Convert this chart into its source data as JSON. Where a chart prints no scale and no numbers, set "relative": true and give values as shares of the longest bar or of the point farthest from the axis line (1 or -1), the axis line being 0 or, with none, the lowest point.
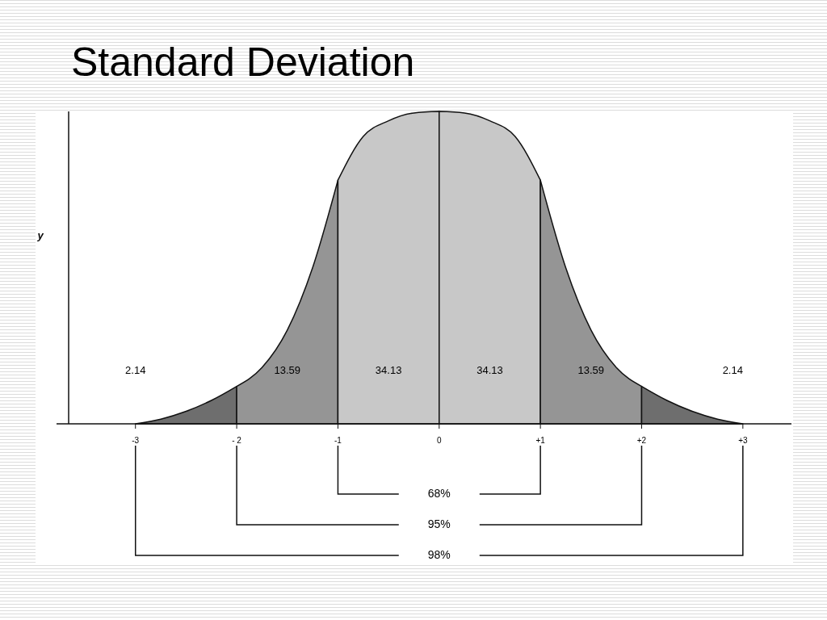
{
  "chart_data": {
    "type": "area",
    "title": "Standard Deviation",
    "ylabel": "y",
    "relative": true,
    "xlim": [
      -3.66,
      3.48
    ],
    "xticks": [
      -3,
      {
        "value": -2,
        "label": "- 2"
      },
      -1,
      0,
      {
        "value": 1,
        "label": "+1"
      },
      {
        "value": 2,
        "label": "+2"
      },
      {
        "value": 3,
        "label": "+3"
      }
    ],
    "series": [
      {
        "color": "#6e6e6e",
        "x": [
          -3,
          -2.75,
          -2.5,
          -2.25,
          -2
        ],
        "values": [
          0,
          0.015,
          0.04,
          0.075,
          0.12
        ]
      },
      {
        "color": "#959595",
        "x": [
          -2,
          -1.75,
          -1.5,
          -1.25,
          -1
        ],
        "values": [
          0.12,
          0.18,
          0.3,
          0.5,
          0.78
        ]
      },
      {
        "color": "#c8c8c8",
        "x": [
          -1,
          -0.75,
          -0.5,
          -0.25,
          0
        ],
        "values": [
          0.78,
          0.92,
          0.97,
          0.995,
          1
        ]
      },
      {
        "color": "#c8c8c8",
        "x": [
          0,
          0.25,
          0.5,
          0.75,
          1
        ],
        "values": [
          1,
          0.995,
          0.97,
          0.92,
          0.78
        ]
      },
      {
        "color": "#959595",
        "x": [
          1,
          1.25,
          1.5,
          1.75,
          2
        ],
        "values": [
          0.78,
          0.5,
          0.3,
          0.18,
          0.12
        ]
      },
      {
        "color": "#6e6e6e",
        "x": [
          2,
          2.25,
          2.5,
          2.75,
          3
        ],
        "values": [
          0.12,
          0.075,
          0.04,
          0.015,
          0
        ]
      }
    ],
    "annotations": [
      "2.14",
      "13.59",
      "34.13",
      "34.13",
      "13.59",
      "2.14",
      "68%",
      "95%",
      "98%"
    ]
  }
}
